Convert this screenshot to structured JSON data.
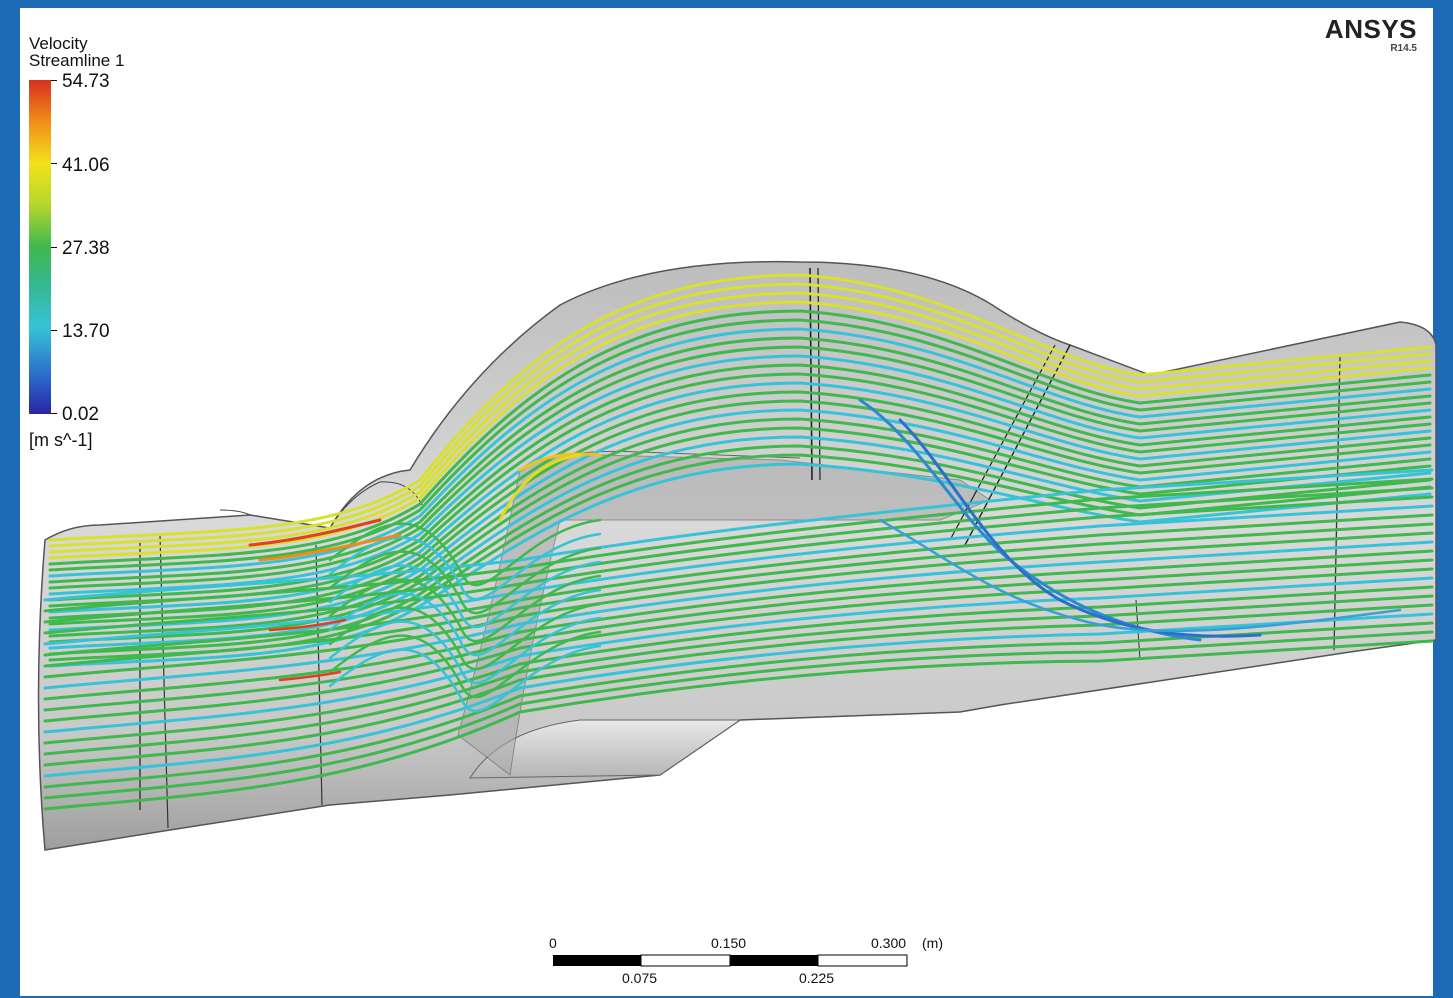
{
  "legend": {
    "title_line1": "Velocity",
    "title_line2": "Streamline 1",
    "ticks": [
      "54.73",
      "41.06",
      "27.38",
      "13.70",
      "0.02"
    ],
    "unit": "[m s^-1]"
  },
  "brand": {
    "name": "ANSYS",
    "version": "R14.5"
  },
  "scale_bar": {
    "top_labels": [
      "0",
      "0.150",
      "0.300"
    ],
    "unit": "(m)",
    "bottom_labels": [
      "0.075",
      "0.225"
    ]
  },
  "colors": {
    "frame": "#1c6bb4",
    "geometry": "#c8c8c8",
    "streamline_green": "#3fb84e",
    "streamline_cyan": "#37c3d6",
    "streamline_yellow": "#d8e12b",
    "streamline_red": "#e0401f"
  }
}
